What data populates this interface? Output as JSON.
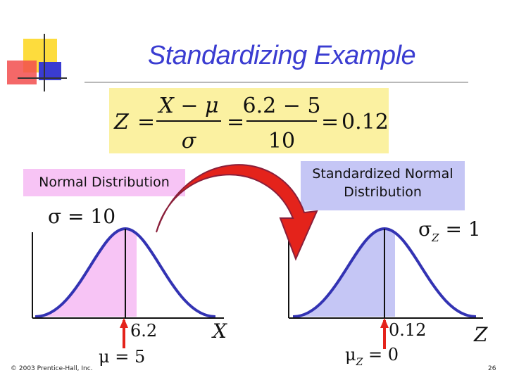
{
  "slide": {
    "title": "Standardizing Example",
    "formula": {
      "lhs": "Z",
      "frac1_num": "X − μ",
      "frac1_den": "σ",
      "frac2_num": "6.2 − 5",
      "frac2_den": "10",
      "result": "0.12"
    },
    "left_panel": {
      "label": "Normal Distribution",
      "sigma_label": "σ = 10",
      "value_label": "6.2",
      "mu_label": "μ = 5",
      "axis_label": "X"
    },
    "right_panel": {
      "label": "Standardized Normal Distribution",
      "sigma_label_main": "σ",
      "sigma_label_sub": "Z",
      "sigma_label_rest": " = 1",
      "value_label": "0.12",
      "mu_label_main": "μ",
      "mu_label_sub": "Z",
      "mu_label_rest": " = 0",
      "axis_label": "Z"
    },
    "footer": {
      "copyright": "© 2003 Prentice-Hall, Inc.",
      "page_number": "26"
    },
    "colors": {
      "title": "#3a3cd1",
      "curve": "#3333b3",
      "left_fill": "#f7c4f5",
      "right_fill": "#c5c6f5",
      "formula_bg": "#fbf1a1",
      "arrow": "#e4231b"
    }
  }
}
